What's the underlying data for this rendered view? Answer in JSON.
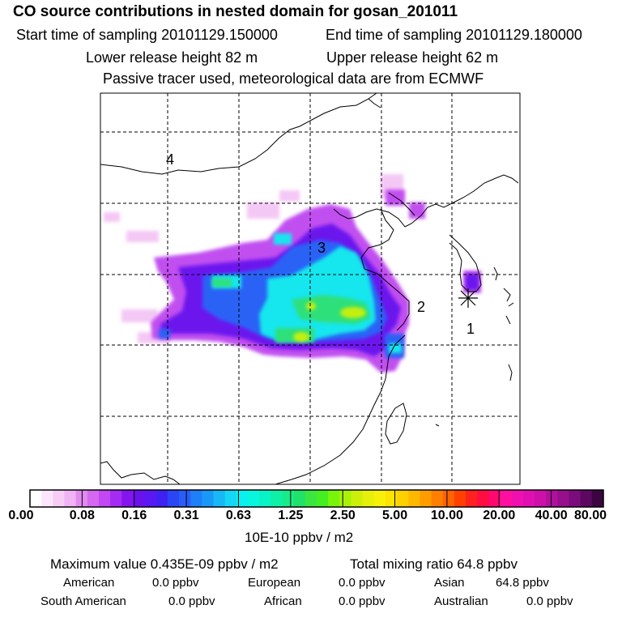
{
  "header": {
    "title": "CO  source contributions in nested domain for gosan_201011",
    "start_label": "Start time of sampling 20101129.150000",
    "end_label": "End time of sampling 20101129.180000",
    "lower_label": "Lower release height   82 m",
    "upper_label": "Upper release height   62 m",
    "note": "Passive tracer used, meteorological data are from ECMWF"
  },
  "map": {
    "region_labels": [
      "1",
      "2",
      "3",
      "4"
    ]
  },
  "colorbar": {
    "unit": "10E-10 ppbv / m2",
    "tick_labels": [
      "0.00",
      "0.08",
      "0.16",
      "0.31",
      "0.63",
      "1.25",
      "2.50",
      "5.00",
      "10.00",
      "20.00",
      "40.00",
      "80.00"
    ],
    "colors": [
      "#ffffff",
      "#fde6fb",
      "#f7cdf6",
      "#f0b3f3",
      "#e18bef",
      "#d468f0",
      "#c148f2",
      "#a42cf2",
      "#8515ee",
      "#6a12ee",
      "#5a19f2",
      "#3f22f3",
      "#2a45f5",
      "#2a5df8",
      "#1e7ff8",
      "#1a98f8",
      "#18b8f7",
      "#16d6f6",
      "#08f0f0",
      "#08f7dc",
      "#08f3c6",
      "#0ef0a8",
      "#18ec88",
      "#20e26a",
      "#3ce640",
      "#44ee20",
      "#78f40a",
      "#a8f20a",
      "#cdf00a",
      "#e6f00a",
      "#f8f008",
      "#ffe300",
      "#ffd000",
      "#ffb800",
      "#ff9d00",
      "#ff8000",
      "#ff6400",
      "#ff4000",
      "#ff2020",
      "#ff0c40",
      "#ff0870",
      "#ff10a0",
      "#f010b0",
      "#e010b0",
      "#cc10a8",
      "#b0109c",
      "#96108c",
      "#7a0c7c",
      "#5c0860",
      "#3c0440"
    ]
  },
  "footer": {
    "max_label": "Maximum value  0.435E-09 ppbv / m2",
    "total_label": "Total mixing ratio       64.8 ppbv",
    "american_label": "American",
    "american_value": "0.0 ppbv",
    "european_label": "European",
    "european_value": "0.0 ppbv",
    "asian_label": "Asian",
    "asian_value": "64.8 ppbv",
    "south_american_label": "South American",
    "south_american_value": "0.0 ppbv",
    "african_label": "African",
    "african_value": "0.0 ppbv",
    "australian_label": "Australian",
    "australian_value": "0.0 ppbv"
  }
}
